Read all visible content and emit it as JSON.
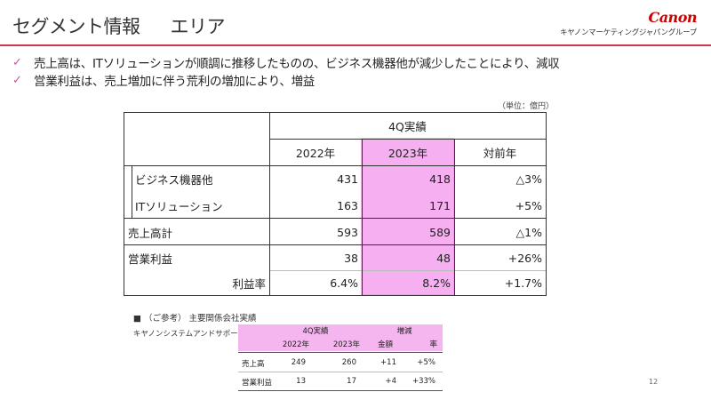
{
  "header": {
    "title": "セグメント情報",
    "subtitle": "エリア",
    "logo_text": "Canon",
    "logo_sub": "キヤノンマーケティングジャパングループ"
  },
  "bullets": [
    "売上高は、ITソリューションが順調に推移したものの、ビジネス機器他が減少したことにより、減収",
    "営業利益は、売上増加に伴う荒利の増加により、増益"
  ],
  "unit": "（単位：億円）",
  "main_table": {
    "group_header": "4Q実績",
    "columns": [
      "2022年",
      "2023年",
      "対前年"
    ],
    "rows": [
      {
        "label": "ビジネス機器他",
        "v2022": "431",
        "v2023": "418",
        "yoy": "△3%"
      },
      {
        "label": "ITソリューション",
        "v2022": "163",
        "v2023": "171",
        "yoy": "+5%"
      },
      {
        "label": "売上高計",
        "v2022": "593",
        "v2023": "589",
        "yoy": "△1%"
      },
      {
        "label": "営業利益",
        "v2022": "38",
        "v2023": "48",
        "yoy": "+26%"
      },
      {
        "label": "利益率",
        "v2022": "6.4%",
        "v2023": "8.2%",
        "yoy": "+1.7%"
      }
    ]
  },
  "reference": {
    "title": "■ （ご参考） 主要関係会社実績",
    "company": "キヤノンシステムアンドサポート",
    "group1": "4Q実績",
    "group2": "増減",
    "cols": [
      "2022年",
      "2023年",
      "金額",
      "率"
    ],
    "rows": [
      {
        "label": "売上高",
        "v2022": "249",
        "v2023": "260",
        "amt": "+11",
        "rate": "+5%"
      },
      {
        "label": "営業利益",
        "v2022": "13",
        "v2023": "17",
        "amt": "+4",
        "rate": "+33%"
      }
    ]
  },
  "page_number": "12"
}
